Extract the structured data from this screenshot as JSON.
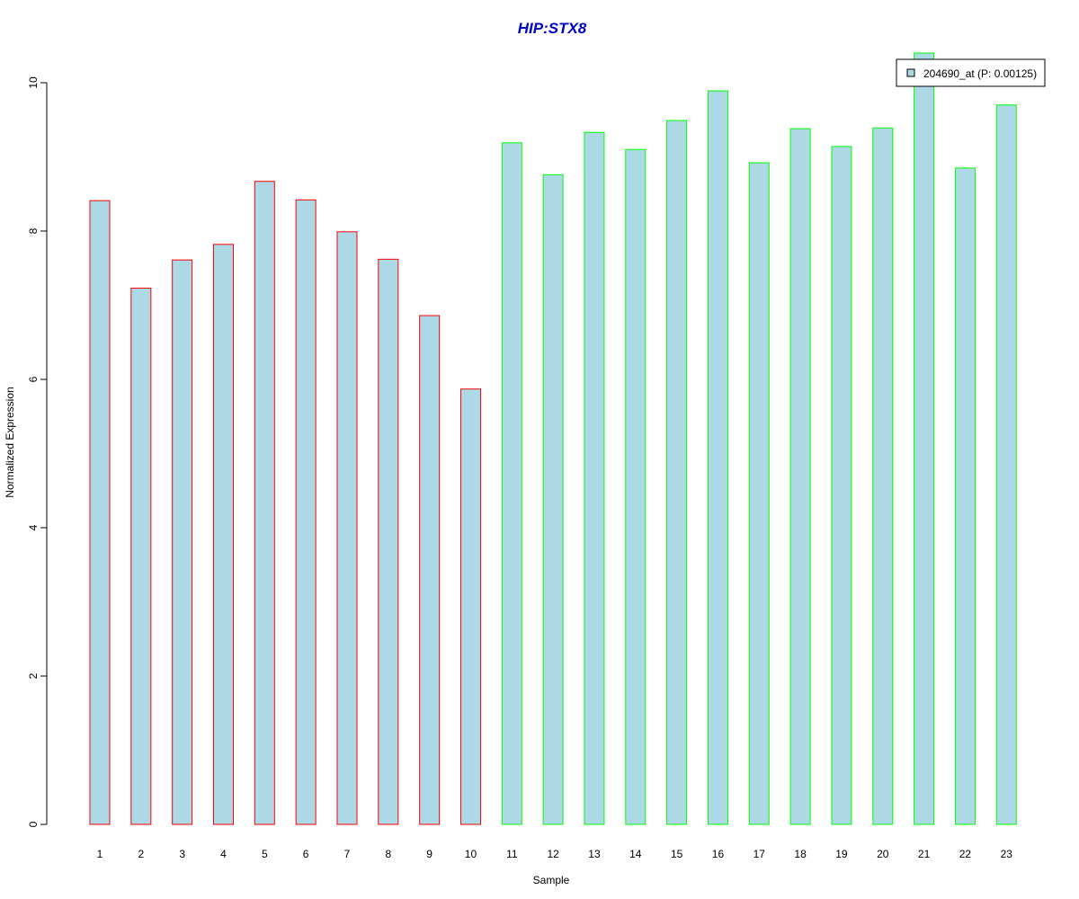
{
  "chart_data": {
    "type": "bar",
    "title": "HIP:STX8",
    "xlabel": "Sample",
    "ylabel": "Normalized Expression",
    "categories": [
      "1",
      "2",
      "3",
      "4",
      "5",
      "6",
      "7",
      "8",
      "9",
      "10",
      "11",
      "12",
      "13",
      "14",
      "15",
      "16",
      "17",
      "18",
      "19",
      "20",
      "21",
      "22",
      "23"
    ],
    "series": [
      {
        "name": "204690_at (P: 0.00125)",
        "values": [
          8.41,
          7.23,
          7.61,
          7.82,
          8.67,
          8.42,
          7.99,
          7.62,
          6.86,
          5.87,
          9.19,
          8.76,
          9.33,
          9.1,
          9.49,
          9.89,
          8.92,
          9.38,
          9.14,
          9.39,
          10.4,
          8.85,
          9.7
        ]
      }
    ],
    "bar_groups": [
      {
        "samples": [
          1,
          2,
          3,
          4,
          5,
          6,
          7,
          8,
          9,
          10
        ],
        "border_color": "#ff0000"
      },
      {
        "samples": [
          11,
          12,
          13,
          14,
          15,
          16,
          17,
          18,
          19,
          20,
          21,
          22,
          23
        ],
        "border_color": "#00ff00"
      }
    ],
    "ylim": [
      0,
      10.4
    ],
    "yticks": [
      0,
      2,
      4,
      6,
      8,
      10
    ],
    "grid": false,
    "legend_position": "top-right"
  },
  "colors": {
    "bar_fill": "#add8e6",
    "title": "#0000cc",
    "axis": "#000000"
  }
}
